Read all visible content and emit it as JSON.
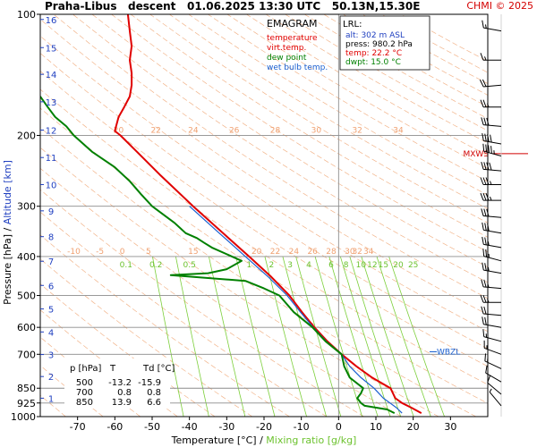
{
  "header": {
    "station": "Praha-Libus",
    "mode": "descent",
    "datetime": "01.06.2025 13:30 UTC",
    "coords": "50.13N,15.30E",
    "credit": "CHMI © 2025"
  },
  "chart_data": {
    "type": "line",
    "title": "EMAGRAM",
    "xlabel": "Temperature [°C]",
    "xlabel2": "Mixing ratio [g/kg]",
    "ylabel": "Pressure [hPa]",
    "ylabel2": "Altitude [km]",
    "xlim": [
      -80,
      40
    ],
    "ylim": [
      1000,
      100
    ],
    "y_scale": "log",
    "x_ticks": [
      -70,
      -60,
      -50,
      -40,
      -30,
      -20,
      -10,
      0,
      10,
      20,
      30
    ],
    "pressure_ticks": [
      100,
      200,
      300,
      400,
      500,
      600,
      700,
      850,
      925,
      1000
    ],
    "altitude_ticks": [
      {
        "km": 1,
        "p": 900
      },
      {
        "km": 2,
        "p": 795
      },
      {
        "km": 3,
        "p": 701
      },
      {
        "km": 4,
        "p": 616
      },
      {
        "km": 5,
        "p": 540
      },
      {
        "km": 6,
        "p": 472
      },
      {
        "km": 7,
        "p": 411
      },
      {
        "km": 8,
        "p": 357
      },
      {
        "km": 9,
        "p": 308
      },
      {
        "km": 10,
        "p": 265
      },
      {
        "km": 11,
        "p": 227
      },
      {
        "km": 12,
        "p": 194
      },
      {
        "km": 13,
        "p": 165
      },
      {
        "km": 14,
        "p": 141
      },
      {
        "km": 15,
        "p": 121
      },
      {
        "km": 16,
        "p": 103
      }
    ],
    "mixing_ratio_labels": [
      "0.1",
      "0.2",
      "0.5",
      "1",
      "2",
      "3",
      "4",
      "6",
      "8",
      "10",
      "12",
      "15",
      "20",
      "25"
    ],
    "adiabat_labels_upper": [
      "20",
      "22",
      "24",
      "26",
      "28",
      "30",
      "32",
      "34"
    ],
    "adiabat_labels_lower": [
      "-10",
      "-5",
      "0",
      "5",
      "15",
      "20",
      "22",
      "24",
      "26",
      "28",
      "30",
      "32",
      "34"
    ],
    "legend": [
      {
        "label": "temperature",
        "color": "#e00000"
      },
      {
        "label": "virt.temp.",
        "color": "#e00000"
      },
      {
        "label": "dew point",
        "color": "#008000"
      },
      {
        "label": "wet bulb temp.",
        "color": "#1a5fd0"
      }
    ],
    "lrl": {
      "title": "LRL:",
      "alt": "alt: 302 m ASL",
      "press": "press: 980.2 hPa",
      "temp": "temp: 22.2 °C",
      "dwpt": "dwpt: 15.0 °C"
    },
    "level_table": {
      "headers": [
        "p [hPa]",
        "T",
        "Td [°C]"
      ],
      "rows": [
        [
          "500",
          "-13.2",
          "-15.9"
        ],
        [
          "700",
          "0.8",
          "0.8"
        ],
        [
          "850",
          "13.9",
          "6.6"
        ]
      ]
    },
    "markers": [
      {
        "label": "MXWS",
        "p": 222
      },
      {
        "label": "WBZL",
        "p": 690
      }
    ],
    "series": [
      {
        "name": "temperature",
        "color": "#e00000",
        "points": [
          [
            980,
            22.2
          ],
          [
            950,
            19.5
          ],
          [
            925,
            17.0
          ],
          [
            900,
            15.2
          ],
          [
            850,
            13.9
          ],
          [
            800,
            9.0
          ],
          [
            750,
            4.8
          ],
          [
            700,
            0.8
          ],
          [
            650,
            -3.0
          ],
          [
            600,
            -6.5
          ],
          [
            550,
            -9.8
          ],
          [
            500,
            -13.2
          ],
          [
            450,
            -18.0
          ],
          [
            400,
            -24.0
          ],
          [
            350,
            -31.0
          ],
          [
            300,
            -39.0
          ],
          [
            250,
            -48.0
          ],
          [
            220,
            -54.0
          ],
          [
            200,
            -58.5
          ],
          [
            195,
            -60.0
          ],
          [
            180,
            -59.0
          ],
          [
            170,
            -57.5
          ],
          [
            160,
            -56.0
          ],
          [
            150,
            -55.5
          ],
          [
            140,
            -55.5
          ],
          [
            130,
            -56.0
          ],
          [
            120,
            -55.5
          ],
          [
            110,
            -56.0
          ],
          [
            100,
            -56.5
          ]
        ]
      },
      {
        "name": "wet bulb temp.",
        "color": "#1a5fd0",
        "points": [
          [
            980,
            17.0
          ],
          [
            950,
            15.5
          ],
          [
            925,
            13.8
          ],
          [
            900,
            12.0
          ],
          [
            850,
            9.5
          ],
          [
            800,
            6.0
          ],
          [
            750,
            3.0
          ],
          [
            700,
            0.8
          ],
          [
            650,
            -3.3
          ],
          [
            600,
            -6.8
          ],
          [
            550,
            -10.2
          ],
          [
            500,
            -13.8
          ],
          [
            450,
            -18.8
          ],
          [
            400,
            -25.0
          ],
          [
            350,
            -32.0
          ],
          [
            300,
            -40.0
          ]
        ]
      },
      {
        "name": "dew point",
        "color": "#008000",
        "points": [
          [
            980,
            15.0
          ],
          [
            960,
            13.0
          ],
          [
            940,
            7.0
          ],
          [
            925,
            6.0
          ],
          [
            900,
            5.0
          ],
          [
            875,
            6.0
          ],
          [
            850,
            6.6
          ],
          [
            800,
            3.0
          ],
          [
            750,
            1.5
          ],
          [
            700,
            0.8
          ],
          [
            650,
            -3.5
          ],
          [
            600,
            -7.0
          ],
          [
            550,
            -12.0
          ],
          [
            500,
            -15.9
          ],
          [
            480,
            -20.0
          ],
          [
            460,
            -25.0
          ],
          [
            445,
            -45.0
          ],
          [
            440,
            -35.0
          ],
          [
            430,
            -30.0
          ],
          [
            410,
            -26.0
          ],
          [
            380,
            -34.0
          ],
          [
            370,
            -36.0
          ],
          [
            360,
            -38.0
          ],
          [
            350,
            -41.0
          ],
          [
            330,
            -44.0
          ],
          [
            300,
            -50.0
          ],
          [
            280,
            -53.0
          ],
          [
            260,
            -56.0
          ],
          [
            240,
            -60.0
          ],
          [
            220,
            -66.0
          ],
          [
            200,
            -71.0
          ],
          [
            190,
            -73.0
          ],
          [
            180,
            -76.0
          ],
          [
            170,
            -78.0
          ],
          [
            160,
            -80.0
          ]
        ]
      }
    ],
    "wind_barbs": [
      {
        "p": 110,
        "dir": 280,
        "kt": 15
      },
      {
        "p": 130,
        "dir": 270,
        "kt": 15
      },
      {
        "p": 150,
        "dir": 265,
        "kt": 20
      },
      {
        "p": 170,
        "dir": 270,
        "kt": 25
      },
      {
        "p": 190,
        "dir": 275,
        "kt": 30
      },
      {
        "p": 210,
        "dir": 280,
        "kt": 40
      },
      {
        "p": 225,
        "dir": 285,
        "kt": 45
      },
      {
        "p": 245,
        "dir": 275,
        "kt": 40
      },
      {
        "p": 265,
        "dir": 270,
        "kt": 35
      },
      {
        "p": 290,
        "dir": 270,
        "kt": 35
      },
      {
        "p": 320,
        "dir": 275,
        "kt": 30
      },
      {
        "p": 350,
        "dir": 280,
        "kt": 30
      },
      {
        "p": 380,
        "dir": 280,
        "kt": 25
      },
      {
        "p": 410,
        "dir": 285,
        "kt": 25
      },
      {
        "p": 440,
        "dir": 280,
        "kt": 25
      },
      {
        "p": 480,
        "dir": 275,
        "kt": 25
      },
      {
        "p": 520,
        "dir": 270,
        "kt": 25
      },
      {
        "p": 560,
        "dir": 275,
        "kt": 20
      },
      {
        "p": 600,
        "dir": 280,
        "kt": 20
      },
      {
        "p": 650,
        "dir": 285,
        "kt": 15
      },
      {
        "p": 700,
        "dir": 290,
        "kt": 15
      },
      {
        "p": 760,
        "dir": 295,
        "kt": 15
      },
      {
        "p": 820,
        "dir": 300,
        "kt": 10
      },
      {
        "p": 880,
        "dir": 310,
        "kt": 10
      },
      {
        "p": 940,
        "dir": 320,
        "kt": 5
      }
    ]
  }
}
